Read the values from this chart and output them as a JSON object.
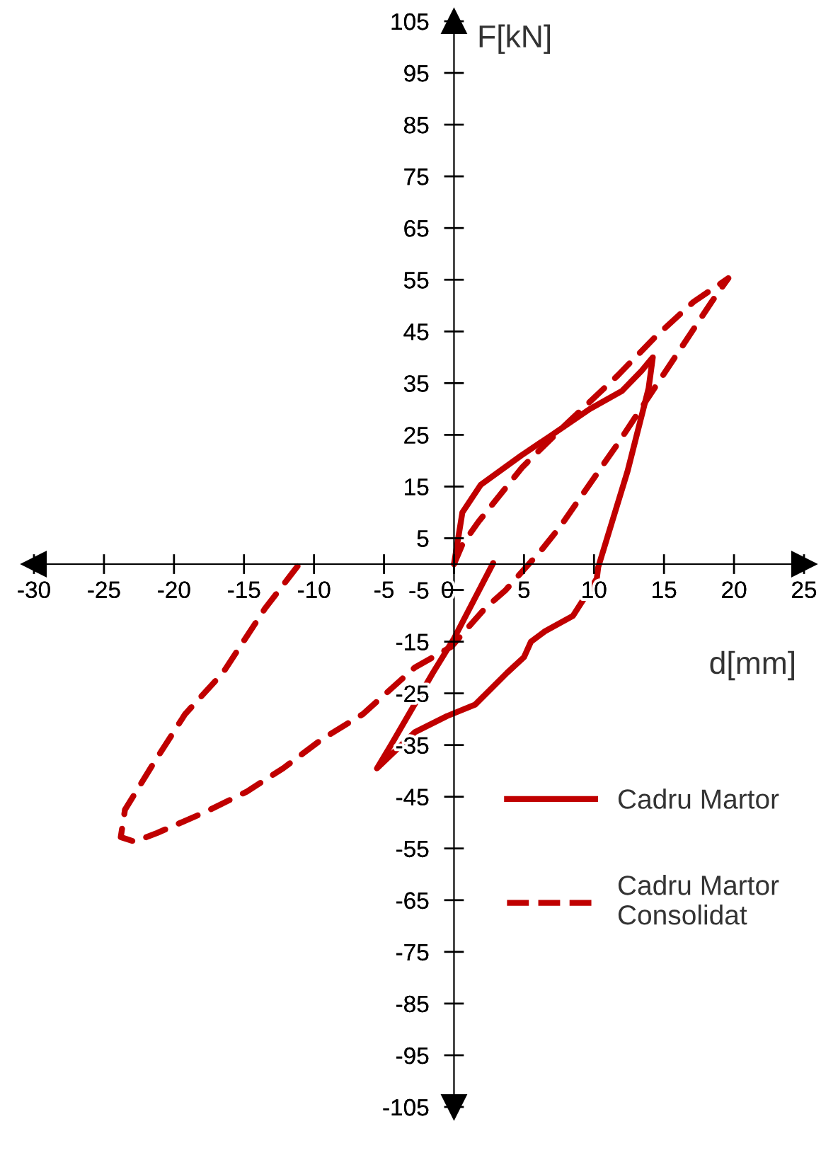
{
  "chart_data": {
    "type": "line",
    "xlabel": "d[mm]",
    "ylabel": "F[kN]",
    "xlim": [
      -30,
      25
    ],
    "ylim": [
      -105,
      105
    ],
    "xticks": [
      -30,
      -25,
      -20,
      -15,
      -10,
      -5,
      0,
      5,
      10,
      15,
      20,
      25
    ],
    "yticks": [
      -105,
      -95,
      -85,
      -75,
      -65,
      -55,
      -45,
      -35,
      -25,
      -15,
      -5,
      5,
      15,
      25,
      35,
      45,
      55,
      65,
      75,
      85,
      95,
      105
    ],
    "grid": false,
    "legend": "bottom right",
    "marker": "none",
    "series": [
      {
        "name": "Cadru Martor",
        "color": "#c00000",
        "line_style": "solid",
        "x": [
          0,
          0.6,
          1.9,
          4.8,
          7,
          9.7,
          12,
          13.4,
          14.2,
          13.9,
          12.4,
          10.3,
          10.2,
          8.5,
          6.5,
          5.5,
          5,
          3.8,
          1.5,
          -0.5,
          -2.8,
          -5.5,
          -4.5,
          -1.5,
          0,
          2.8
        ],
        "values": [
          0,
          10,
          15.3,
          21,
          25,
          30,
          33.5,
          37.4,
          40,
          34,
          18,
          -0.6,
          -2.8,
          -10,
          -13,
          -15,
          -18,
          -21,
          -27.2,
          -29.4,
          -32.5,
          -39.5,
          -35,
          -21,
          -14.4,
          0.2
        ]
      },
      {
        "name": "Cadru Martor\nConsolidat",
        "color": "#c00000",
        "line_style": "dashed",
        "x": [
          0,
          0.6,
          1.75,
          4.9,
          7.6,
          11.7,
          14.4,
          17.1,
          19.6,
          18.4,
          14.7,
          11.7,
          7.6,
          6.3,
          3.7,
          2.2,
          -0.2,
          -2.8,
          -6.5,
          -9.5,
          -12.2,
          -14.8,
          -17.8,
          -21.2,
          -22.8,
          -23.8,
          -23.5,
          -21.5,
          -19.2,
          -16.5,
          -13.5,
          -11
        ],
        "values": [
          0,
          3.8,
          8.2,
          18.8,
          26,
          36.5,
          44,
          50.7,
          55.3,
          50.7,
          35.6,
          23.3,
          7.3,
          2.9,
          -5,
          -8.6,
          -16,
          -20,
          -29,
          -34,
          -39.5,
          -44,
          -48,
          -52,
          -53.7,
          -52.8,
          -47.5,
          -38.7,
          -29,
          -21,
          -8.6,
          0.2
        ]
      }
    ]
  }
}
